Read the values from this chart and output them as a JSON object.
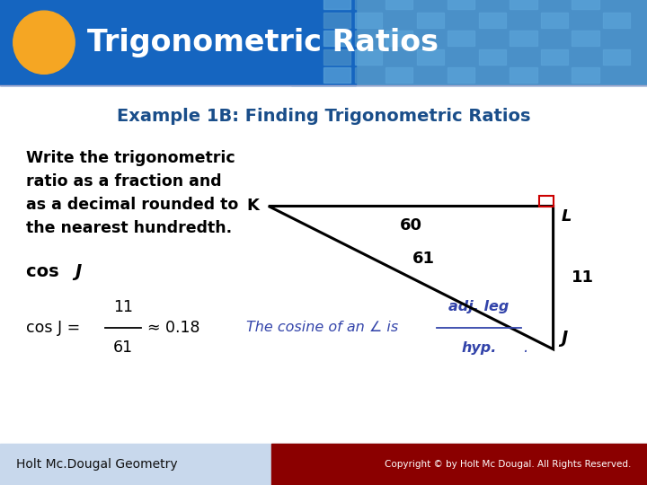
{
  "title": "Trigonometric Ratios",
  "subtitle": "Example 1B: Finding Trigonometric Ratios",
  "header_bg_color": "#1E6BB8",
  "header_text_color": "#FFFFFF",
  "subtitle_text_color": "#1A4E8A",
  "body_bg_color": "#FFFFFF",
  "circle_color": "#F5A623",
  "body_text": "Write the trigonometric\nratio as a fraction and\nas a decimal rounded to\nthe nearest hundredth.",
  "triangle": {
    "K": [
      0.415,
      0.575
    ],
    "L": [
      0.855,
      0.575
    ],
    "J": [
      0.855,
      0.28
    ]
  },
  "footer_text": "Holt Mc.Dougal Geometry",
  "footer_copyright": "Copyright © by Holt Mc Dougal. All Rights Reserved.",
  "footer_bg_color": "#C8D8EC",
  "hint_color": "#3344AA"
}
